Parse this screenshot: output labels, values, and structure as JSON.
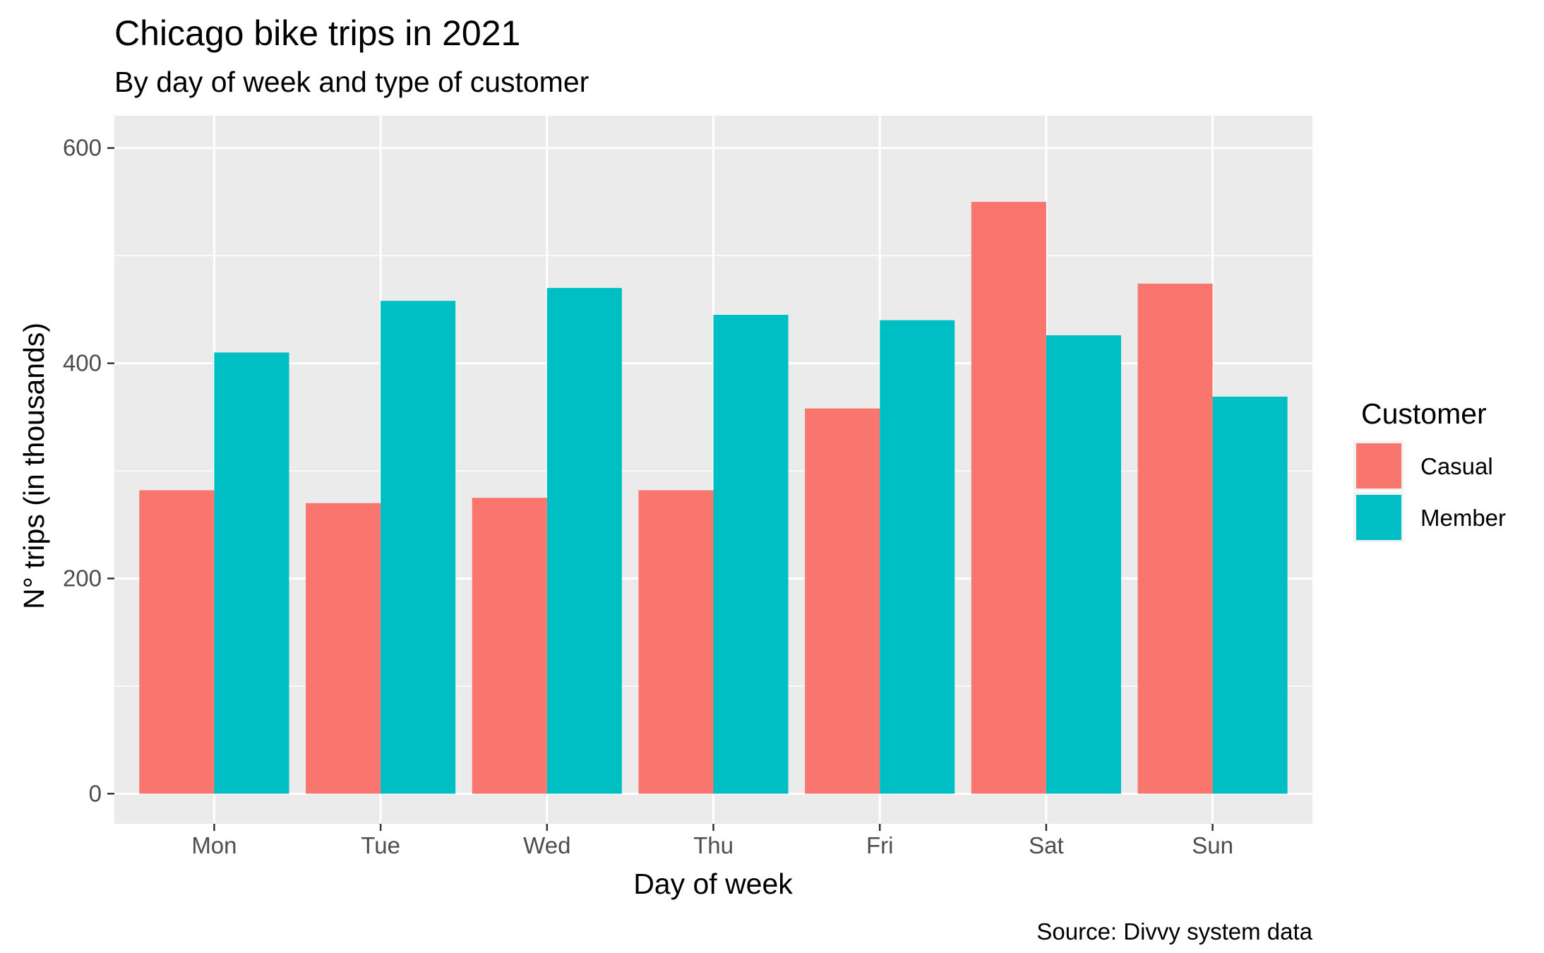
{
  "chart_data": {
    "type": "bar",
    "title": "Chicago bike trips in 2021",
    "subtitle": "By day of week and type of customer",
    "xlabel": "Day of week",
    "ylabel": "N° trips (in thousands)",
    "caption": "Source: Divvy system data",
    "categories": [
      "Mon",
      "Tue",
      "Wed",
      "Thu",
      "Fri",
      "Sat",
      "Sun"
    ],
    "series": [
      {
        "name": "Casual",
        "color": "#F8766D",
        "values": [
          282,
          270,
          275,
          282,
          358,
          550,
          474
        ]
      },
      {
        "name": "Member",
        "color": "#00BFC4",
        "values": [
          410,
          458,
          470,
          445,
          440,
          426,
          369
        ]
      }
    ],
    "ylim": [
      -28,
      630
    ],
    "yticks": [
      0,
      200,
      400,
      600
    ],
    "legend": {
      "title": "Customer",
      "position": "right"
    },
    "grid": true,
    "panel_background": "#EBEBEB"
  }
}
